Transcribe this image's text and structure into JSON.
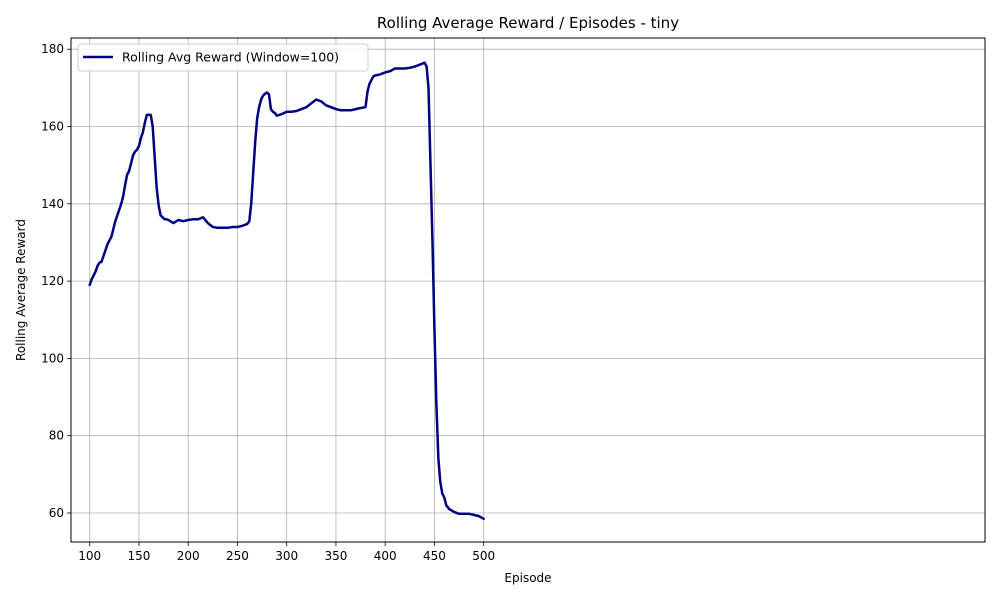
{
  "chart_data": {
    "type": "line",
    "title": "Rolling Average Reward / Episodes - tiny",
    "xlabel": "Episode",
    "ylabel": "Rolling Average Reward",
    "xlim": [
      81,
      1009
    ],
    "ylim": [
      52.5,
      182.9
    ],
    "xticks": [
      100,
      150,
      200,
      250,
      300,
      350,
      400,
      450,
      500
    ],
    "yticks": [
      60,
      80,
      100,
      120,
      140,
      160,
      180
    ],
    "grid": true,
    "legend_position": "upper-left",
    "colors": {
      "line": "#000080",
      "grid": "#b0b0b0"
    },
    "series": [
      {
        "name": "Rolling Avg Reward (Window=100)",
        "x": [
          100,
          102,
          104,
          106,
          108,
          110,
          112,
          114,
          116,
          118,
          120,
          122,
          124,
          126,
          128,
          130,
          132,
          134,
          136,
          138,
          140,
          142,
          144,
          146,
          148,
          150,
          152,
          154,
          156,
          158,
          160,
          162,
          164,
          166,
          168,
          170,
          172,
          174,
          176,
          178,
          180,
          185,
          190,
          195,
          200,
          205,
          210,
          215,
          220,
          225,
          230,
          235,
          240,
          245,
          250,
          255,
          260,
          262,
          264,
          266,
          268,
          270,
          272,
          274,
          276,
          278,
          280,
          282,
          284,
          286,
          288,
          290,
          295,
          300,
          305,
          310,
          315,
          320,
          325,
          330,
          335,
          340,
          345,
          350,
          355,
          360,
          365,
          370,
          375,
          380,
          382,
          384,
          386,
          388,
          390,
          395,
          400,
          405,
          410,
          415,
          420,
          425,
          430,
          435,
          440,
          442,
          444,
          446,
          448,
          450,
          452,
          454,
          456,
          458,
          460,
          462,
          465,
          470,
          475,
          480,
          485,
          490,
          495,
          500
        ],
        "y": [
          119,
          120.5,
          121.5,
          122.5,
          124,
          124.8,
          125,
          126.5,
          128,
          129.5,
          130.5,
          131.5,
          133.5,
          135.5,
          137,
          138.5,
          140,
          142,
          145,
          147.5,
          148.5,
          150.5,
          152.5,
          153.5,
          154,
          155,
          157,
          158.5,
          161,
          163,
          163,
          163,
          160,
          152,
          144,
          139.5,
          137,
          136.5,
          136,
          136,
          135.8,
          135,
          135.8,
          135.5,
          135.8,
          136,
          136,
          136.5,
          135,
          134,
          133.8,
          133.8,
          133.8,
          134,
          134,
          134.3,
          134.8,
          135.5,
          140,
          148,
          156,
          162,
          165,
          167,
          168,
          168.5,
          168.8,
          168.3,
          164.5,
          163.8,
          163.5,
          162.8,
          163.2,
          163.8,
          163.8,
          164,
          164.5,
          165,
          166,
          167,
          166.5,
          165.5,
          165,
          164.5,
          164.2,
          164.2,
          164.2,
          164.5,
          164.8,
          165,
          169,
          171,
          172,
          173,
          173.2,
          173.5,
          174,
          174.3,
          175,
          175,
          175,
          175.2,
          175.5,
          176,
          176.5,
          175.5,
          170,
          150,
          130,
          108,
          88,
          74,
          68,
          65,
          64,
          62,
          61,
          60.3,
          59.8,
          59.8,
          59.8,
          59.5,
          59.2,
          58.5
        ]
      }
    ]
  }
}
